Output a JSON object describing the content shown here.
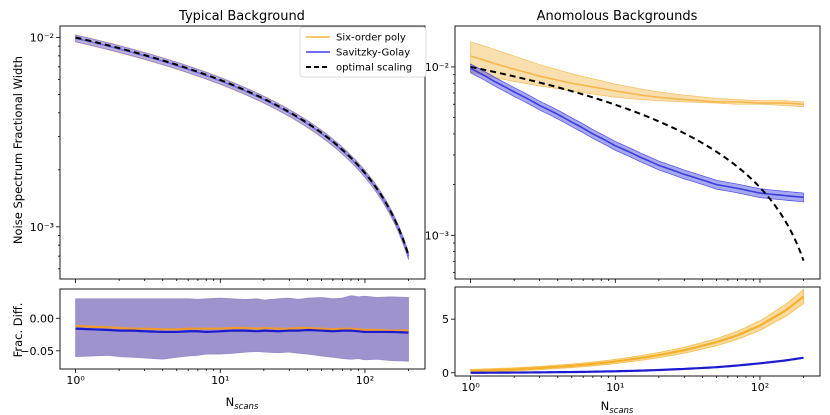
{
  "chart_data": [
    {
      "id": "typical_main",
      "type": "line",
      "title": "Typical Background",
      "xlabel": "",
      "ylabel": "Noise Spectrum Fractional Width",
      "xscale": "log",
      "yscale": "log",
      "xlim": [
        0.78,
        260
      ],
      "ylim": [
        0.00053,
        0.0115
      ],
      "yticks": [
        {
          "v": 0.01,
          "label": "10⁻²"
        },
        {
          "v": 0.001,
          "label": "10⁻³"
        }
      ],
      "legend": {
        "placement": "top-right",
        "entries": [
          {
            "label": "Six-order poly",
            "color": "#fbc670",
            "style": "solid"
          },
          {
            "label": "Savitzky-Golay",
            "color": "#6f6ff0",
            "style": "solid"
          },
          {
            "label": "optimal scaling",
            "color": "#000000",
            "style": "dashed"
          }
        ]
      },
      "series": [
        {
          "name": "Six-order poly",
          "color": "#fbc670",
          "x": [
            1,
            200
          ],
          "y": [
            0.0099,
            0.0007
          ],
          "band_frac": 0.045
        },
        {
          "name": "Savitzky-Golay",
          "color": "#6f6ff0",
          "x": [
            1,
            200
          ],
          "y": [
            0.0099,
            0.0007
          ],
          "band_frac": 0.04
        },
        {
          "name": "optimal scaling",
          "color": "#000000",
          "dashed": true,
          "x": [
            1,
            200
          ],
          "y": [
            0.01,
            0.000707
          ]
        }
      ]
    },
    {
      "id": "anomalous_main",
      "type": "line",
      "title": "Anomolous Backgrounds",
      "xlabel": "",
      "ylabel": "",
      "xscale": "log",
      "yscale": "log",
      "xlim": [
        0.78,
        260
      ],
      "ylim": [
        0.00055,
        0.0175
      ],
      "yticks": [
        {
          "v": 0.01,
          "label": "10⁻²"
        },
        {
          "v": 0.001,
          "label": "10⁻³"
        }
      ],
      "series": [
        {
          "name": "Six-order poly",
          "color": "#f5b74c",
          "x": [
            1,
            1.5,
            2,
            3,
            5,
            7,
            10,
            15,
            20,
            30,
            50,
            70,
            100,
            150,
            200
          ],
          "y": [
            0.0116,
            0.0104,
            0.0097,
            0.0088,
            0.008,
            0.0076,
            0.0072,
            0.0068,
            0.0066,
            0.0064,
            0.0062,
            0.0062,
            0.0061,
            0.0061,
            0.006
          ],
          "band_lo": [
            0.0093,
            0.0086,
            0.0082,
            0.0077,
            0.0072,
            0.0069,
            0.0066,
            0.0064,
            0.0063,
            0.0062,
            0.0061,
            0.006,
            0.006,
            0.0059,
            0.0058
          ],
          "band_hi": [
            0.0141,
            0.0126,
            0.0116,
            0.0103,
            0.0091,
            0.0085,
            0.0079,
            0.0074,
            0.0071,
            0.0068,
            0.0065,
            0.0064,
            0.0063,
            0.0063,
            0.0062
          ]
        },
        {
          "name": "Savitzky-Golay",
          "color": "#3d3de0",
          "x": [
            1,
            1.5,
            2,
            3,
            5,
            7,
            10,
            15,
            20,
            30,
            50,
            70,
            100,
            150,
            200
          ],
          "y": [
            0.0098,
            0.0081,
            0.0071,
            0.0059,
            0.0047,
            0.004,
            0.0034,
            0.0029,
            0.0026,
            0.0023,
            0.002,
            0.0019,
            0.00178,
            0.00172,
            0.00168
          ],
          "band_frac": 0.06
        },
        {
          "name": "optimal scaling",
          "color": "#000000",
          "dashed": true,
          "x": [
            1,
            200
          ],
          "y": [
            0.01,
            0.000707
          ]
        }
      ]
    },
    {
      "id": "typical_diff",
      "type": "line",
      "title": "",
      "xlabel": "N_scans",
      "ylabel": "Frac. Diff.",
      "xscale": "log",
      "yscale": "linear",
      "xlim": [
        0.78,
        260
      ],
      "ylim": [
        -0.078,
        0.045
      ],
      "yticks": [
        {
          "v": 0.0,
          "label": "0.00"
        },
        {
          "v": -0.05,
          "label": "−0.05"
        }
      ],
      "xticks": [
        {
          "v": 1,
          "label": "10⁰"
        },
        {
          "v": 10,
          "label": "10¹"
        },
        {
          "v": 100,
          "label": "10²"
        }
      ],
      "series": [
        {
          "name": "band",
          "color": "#8e80c5",
          "x": [
            1,
            1.3,
            1.7,
            2,
            2.5,
            3,
            4,
            5,
            6,
            7,
            8,
            10,
            12,
            15,
            18,
            20,
            25,
            30,
            35,
            40,
            50,
            60,
            70,
            80,
            90,
            100,
            120,
            150,
            200
          ],
          "band_hi": [
            0.03,
            0.03,
            0.03,
            0.03,
            0.03,
            0.03,
            0.03,
            0.03,
            0.03,
            0.029,
            0.03,
            0.031,
            0.03,
            0.029,
            0.03,
            0.028,
            0.03,
            0.031,
            0.029,
            0.031,
            0.032,
            0.03,
            0.031,
            0.035,
            0.033,
            0.034,
            0.032,
            0.033,
            0.032
          ],
          "band_lo": [
            -0.059,
            -0.058,
            -0.057,
            -0.059,
            -0.06,
            -0.061,
            -0.063,
            -0.06,
            -0.058,
            -0.057,
            -0.055,
            -0.055,
            -0.054,
            -0.052,
            -0.051,
            -0.052,
            -0.053,
            -0.052,
            -0.054,
            -0.055,
            -0.058,
            -0.06,
            -0.062,
            -0.063,
            -0.062,
            -0.064,
            -0.063,
            -0.065,
            -0.066
          ]
        },
        {
          "name": "Six-order poly",
          "color": "#f09a28",
          "x": [
            1,
            1.3,
            1.7,
            2,
            2.5,
            3,
            4,
            5,
            6,
            7,
            8,
            10,
            12,
            15,
            18,
            20,
            25,
            30,
            35,
            40,
            50,
            60,
            70,
            80,
            90,
            100,
            120,
            150,
            200
          ],
          "y": [
            -0.012,
            -0.013,
            -0.014,
            -0.015,
            -0.016,
            -0.016,
            -0.017,
            -0.017,
            -0.016,
            -0.016,
            -0.016,
            -0.016,
            -0.015,
            -0.015,
            -0.016,
            -0.015,
            -0.016,
            -0.016,
            -0.015,
            -0.015,
            -0.016,
            -0.017,
            -0.016,
            -0.016,
            -0.017,
            -0.018,
            -0.018,
            -0.019,
            -0.019
          ]
        },
        {
          "name": "Savitzky-Golay",
          "color": "#1a1ad0",
          "x": [
            1,
            1.3,
            1.7,
            2,
            2.5,
            3,
            4,
            5,
            6,
            7,
            8,
            10,
            12,
            15,
            18,
            20,
            25,
            30,
            35,
            40,
            50,
            60,
            70,
            80,
            90,
            100,
            120,
            150,
            200
          ],
          "y": [
            -0.016,
            -0.017,
            -0.018,
            -0.019,
            -0.019,
            -0.02,
            -0.021,
            -0.021,
            -0.02,
            -0.02,
            -0.021,
            -0.02,
            -0.019,
            -0.019,
            -0.02,
            -0.019,
            -0.02,
            -0.019,
            -0.019,
            -0.018,
            -0.019,
            -0.02,
            -0.019,
            -0.019,
            -0.02,
            -0.021,
            -0.021,
            -0.021,
            -0.022
          ]
        }
      ]
    },
    {
      "id": "anomalous_diff",
      "type": "line",
      "title": "",
      "xlabel": "N_scans",
      "ylabel": "",
      "xscale": "log",
      "yscale": "linear",
      "xlim": [
        0.78,
        260
      ],
      "ylim": [
        -0.3,
        8.0
      ],
      "yticks": [
        {
          "v": 0,
          "label": "0"
        },
        {
          "v": 5,
          "label": "5"
        }
      ],
      "xticks": [
        {
          "v": 1,
          "label": "10⁰"
        },
        {
          "v": 10,
          "label": "10¹"
        },
        {
          "v": 100,
          "label": "10²"
        }
      ],
      "series": [
        {
          "name": "Six-order poly",
          "color": "#f5b02a",
          "x": [
            1,
            1.5,
            2,
            3,
            5,
            7,
            10,
            15,
            20,
            30,
            50,
            70,
            100,
            150,
            200
          ],
          "y": [
            0.18,
            0.26,
            0.32,
            0.44,
            0.65,
            0.82,
            1.05,
            1.38,
            1.65,
            2.1,
            2.85,
            3.5,
            4.4,
            5.8,
            7.1
          ],
          "band_frac": 0.075
        },
        {
          "name": "Savitzky-Golay",
          "color": "#1a1ad0",
          "x": [
            1,
            1.5,
            2,
            3,
            5,
            7,
            10,
            15,
            20,
            30,
            50,
            70,
            100,
            150,
            200
          ],
          "y": [
            0.0,
            0.01,
            0.02,
            0.04,
            0.07,
            0.1,
            0.14,
            0.2,
            0.26,
            0.36,
            0.52,
            0.68,
            0.88,
            1.15,
            1.4
          ]
        }
      ]
    }
  ]
}
